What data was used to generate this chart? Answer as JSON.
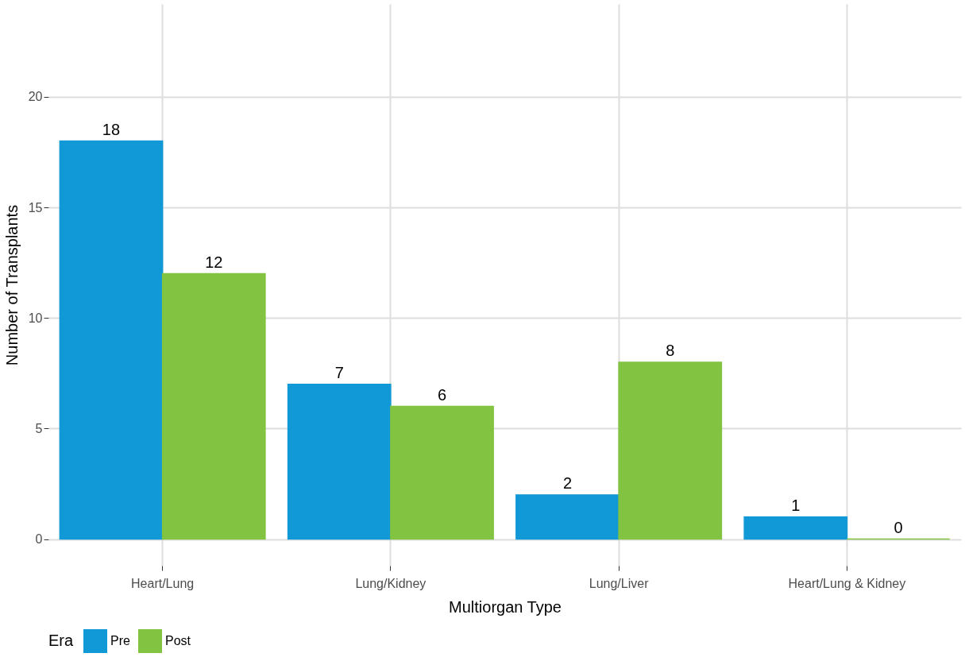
{
  "chart_data": {
    "type": "bar",
    "xlabel": "Multiorgan Type",
    "ylabel": "Number of Transplants",
    "legend_title": "Era",
    "categories": [
      "Heart/Lung",
      "Lung/Kidney",
      "Lung/Liver",
      "Heart/Lung & Kidney"
    ],
    "series": [
      {
        "name": "Pre",
        "color": "#1099d6",
        "values": [
          18,
          7,
          2,
          1
        ]
      },
      {
        "name": "Post",
        "color": "#82c341",
        "values": [
          12,
          6,
          8,
          0
        ]
      }
    ],
    "ylim": [
      -1.2,
      24.2
    ],
    "yticks": [
      0,
      5,
      10,
      15,
      20
    ],
    "grid": true,
    "legend": "bottom",
    "data_labels": true
  }
}
